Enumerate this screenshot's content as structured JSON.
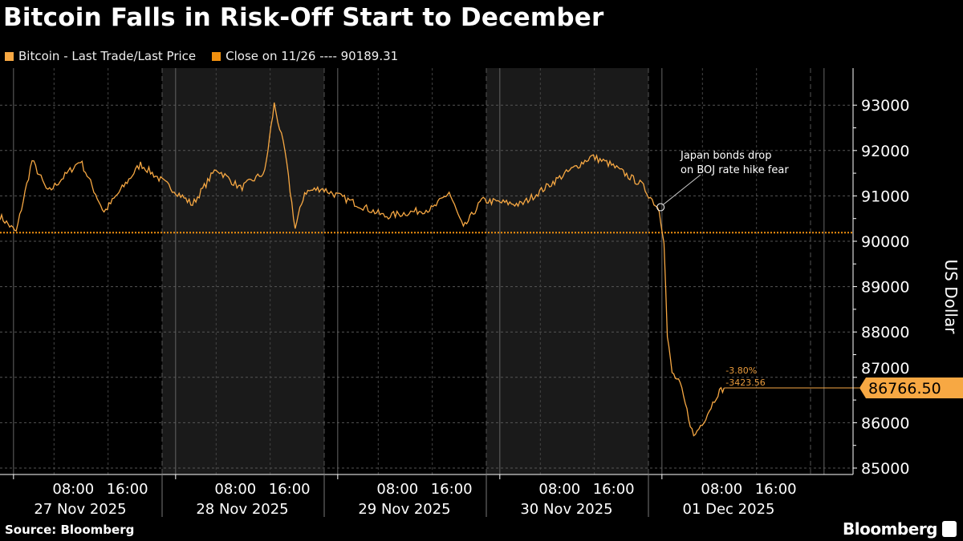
{
  "chart_data": {
    "type": "line",
    "title": "Bitcoin Falls in Risk-Off Start to December",
    "legend": [
      {
        "label": "Bitcoin - Last Trade/Last Price",
        "color": "#f7a843"
      },
      {
        "label": "Close on 11/26 ---- 90189.31",
        "color": "#f0900f"
      }
    ],
    "ylabel": "US Dollar",
    "ylim": [
      84900,
      93800
    ],
    "yticks": [
      85000,
      86000,
      87000,
      88000,
      89000,
      90000,
      91000,
      92000,
      93000
    ],
    "ytick_labels": [
      "85000",
      "86000",
      "87000",
      "88000",
      "89000",
      "90000",
      "91000",
      "92000",
      "93000"
    ],
    "reference_line": 90189.31,
    "last_value_label": "86766.50",
    "change_pct": "-3.80%",
    "change_abs": "-3423.56",
    "x_unit": "hours since 27 Nov 2025 00:00",
    "xlim": [
      0,
      126
    ],
    "day_labels": [
      "27 Nov 2025",
      "28 Nov 2025",
      "29 Nov 2025",
      "30 Nov 2025",
      "01 Dec 2025"
    ],
    "hour_labels": [
      "08:00",
      "16:00"
    ],
    "shaded_days": [
      1,
      3
    ],
    "annotation": {
      "text_line1": "Japan bonds drop",
      "text_line2": "on BOJ rate hike fear",
      "x": 97.8,
      "y": 90750
    },
    "series_keypoints": [
      [
        0,
        90550
      ],
      [
        2.4,
        90200
      ],
      [
        4.75,
        91780
      ],
      [
        7.1,
        91080
      ],
      [
        11.9,
        91780
      ],
      [
        15.4,
        90640
      ],
      [
        20.8,
        91700
      ],
      [
        28.5,
        90810
      ],
      [
        32,
        91600
      ],
      [
        35.6,
        91170
      ],
      [
        39.2,
        91520
      ],
      [
        40.6,
        93020
      ],
      [
        42.2,
        91960
      ],
      [
        43.7,
        90280
      ],
      [
        45.1,
        91080
      ],
      [
        47.5,
        91170
      ],
      [
        57,
        90550
      ],
      [
        64.1,
        90720
      ],
      [
        66.5,
        91080
      ],
      [
        68.6,
        90280
      ],
      [
        71.3,
        90900
      ],
      [
        77.2,
        90810
      ],
      [
        83.1,
        91430
      ],
      [
        87.6,
        91870
      ],
      [
        90.3,
        91700
      ],
      [
        95,
        91250
      ],
      [
        97.6,
        90690
      ],
      [
        98.3,
        90020
      ],
      [
        98.8,
        87900
      ],
      [
        99.5,
        87100
      ],
      [
        100.7,
        86840
      ],
      [
        102.7,
        85690
      ],
      [
        104.5,
        86130
      ],
      [
        106.3,
        86660
      ],
      [
        107.2,
        86766.5
      ]
    ]
  },
  "footer": {
    "source": "Source: Bloomberg",
    "brand": "Bloomberg"
  }
}
